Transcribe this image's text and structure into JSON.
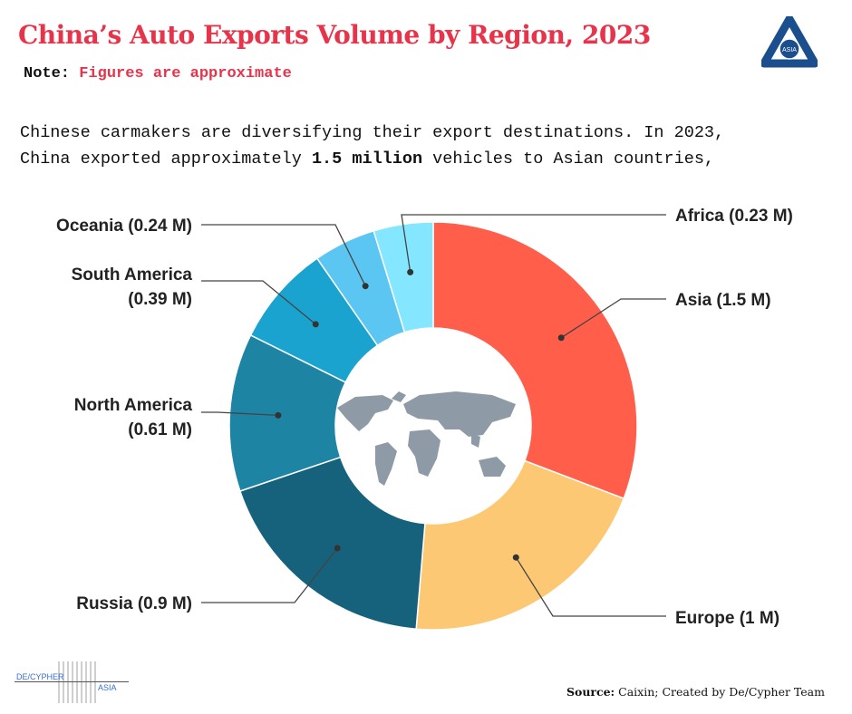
{
  "header": {
    "title": "China’s Auto Exports Volume by Region, 2023",
    "note_label": "Note:",
    "note_value": "Figures are approximate"
  },
  "description": {
    "line1": "Chinese carmakers are diversifying their export destinations. In 2023,",
    "line2_pre": "China exported approximately ",
    "line2_bold": "1.5 million",
    "line2_post": " vehicles to Asian countries,"
  },
  "logos": {
    "top_right": "ASIA",
    "bottom_left_1": "DE/CYPHER",
    "bottom_left_2": "ASIA"
  },
  "footer": {
    "source_label": "Source:",
    "source_text": " Caixin; Created by De/Cypher Team"
  },
  "chart_data": {
    "type": "pie",
    "subtype": "donut",
    "title": "China’s Auto Exports Volume by Region, 2023",
    "unit": "million vehicles",
    "categories": [
      "Asia",
      "Europe",
      "Russia",
      "North America",
      "South America",
      "Oceania",
      "Africa"
    ],
    "values": [
      1.5,
      1.0,
      0.9,
      0.61,
      0.39,
      0.24,
      0.23
    ],
    "labels": [
      "Asia (1.5 M)",
      "Europe (1 M)",
      "Russia (0.9 M)",
      "North America",
      "South America",
      "Oceania (0.24 M)",
      "Africa (0.23 M)"
    ],
    "labels_line2": [
      "",
      "",
      "",
      "(0.61 M)",
      "(0.39 M)",
      "",
      ""
    ],
    "colors": [
      "#FF5E4B",
      "#FDC874",
      "#16627C",
      "#1E84A4",
      "#1BA3D0",
      "#5CC6F2",
      "#84E6FF"
    ],
    "center_icon": "world-map-icon"
  }
}
